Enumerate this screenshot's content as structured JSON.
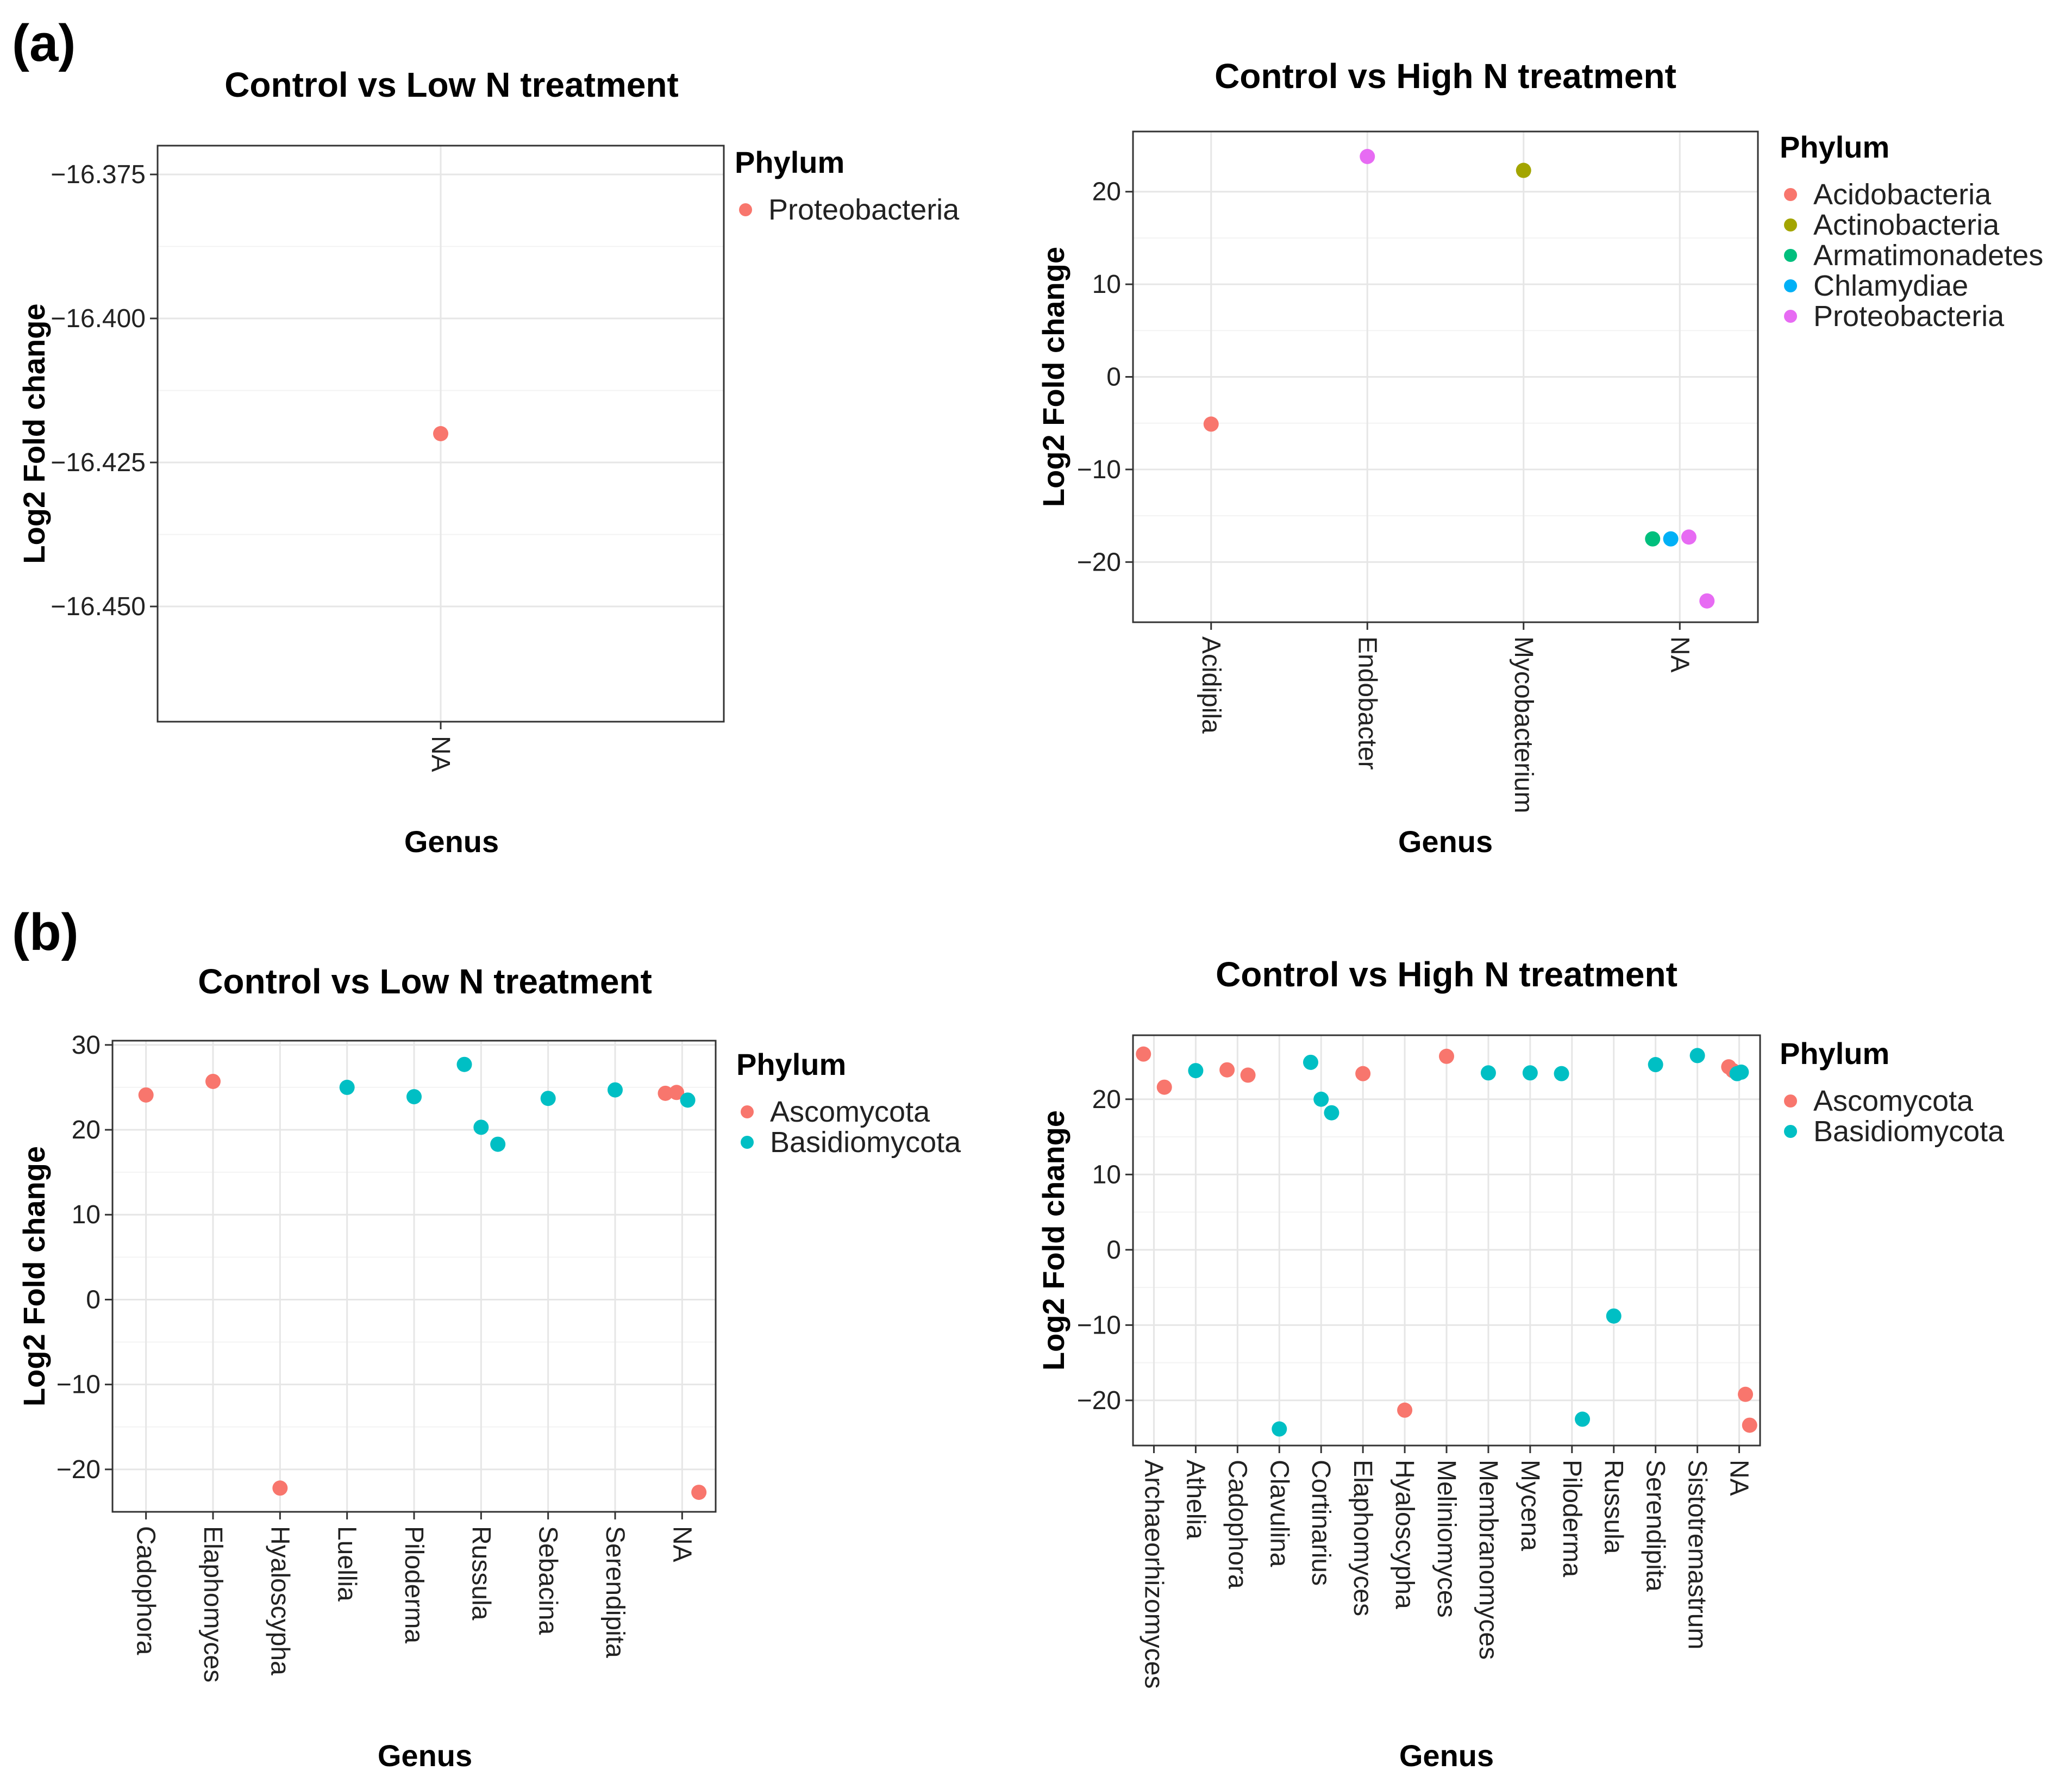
{
  "panel_labels": [
    "(a)",
    "(b)"
  ],
  "chart_data": [
    {
      "type": "scatter",
      "title": "Control vs Low N treatment",
      "xlabel": "Genus",
      "ylabel": "Log2 Fold change",
      "categories": [
        "NA"
      ],
      "ylim": [
        -16.47,
        -16.37
      ],
      "yticks": [
        -16.375,
        -16.4,
        -16.425,
        -16.45
      ],
      "ytick_labels": [
        "−16.375",
        "−16.400",
        "−16.425",
        "−16.450"
      ],
      "grid": true,
      "legend_title": "Phylum",
      "legend": [
        {
          "name": "Proteobacteria",
          "color": "#F8766D"
        }
      ],
      "points": [
        {
          "category": "NA",
          "y": -16.42,
          "phylum": "Proteobacteria",
          "color": "#F8766D"
        }
      ]
    },
    {
      "type": "scatter",
      "title": "Control vs High N treatment",
      "xlabel": "Genus",
      "ylabel": "Log2 Fold change",
      "categories": [
        "Acidipila",
        "Endobacter",
        "Mycobacterium",
        "NA"
      ],
      "ylim": [
        -26.5,
        26.5
      ],
      "yticks": [
        20,
        10,
        0,
        -10,
        -20
      ],
      "ytick_labels": [
        "20",
        "10",
        "0",
        "−10",
        "−20"
      ],
      "grid": true,
      "legend_title": "Phylum",
      "legend": [
        {
          "name": "Acidobacteria",
          "color": "#F8766D"
        },
        {
          "name": "Actinobacteria",
          "color": "#A3A500"
        },
        {
          "name": "Armatimonadetes",
          "color": "#00BF7D"
        },
        {
          "name": "Chlamydiae",
          "color": "#00B0F6"
        },
        {
          "name": "Proteobacteria",
          "color": "#E76BF3"
        }
      ],
      "points": [
        {
          "category": "Acidipila",
          "y": -5.1,
          "phylum": "Acidobacteria",
          "color": "#F8766D"
        },
        {
          "category": "Endobacter",
          "y": 23.8,
          "phylum": "Proteobacteria",
          "color": "#E76BF3"
        },
        {
          "category": "Mycobacterium",
          "y": 22.3,
          "phylum": "Actinobacteria",
          "color": "#A3A500"
        },
        {
          "category": "NA",
          "y": -17.5,
          "phylum": "Armatimonadetes",
          "color": "#00BF7D"
        },
        {
          "category": "NA",
          "y": -17.5,
          "phylum": "Chlamydiae",
          "color": "#00B0F6"
        },
        {
          "category": "NA",
          "y": -17.3,
          "phylum": "Proteobacteria",
          "color": "#E76BF3"
        },
        {
          "category": "NA",
          "y": -24.2,
          "phylum": "Proteobacteria",
          "color": "#E76BF3"
        }
      ]
    },
    {
      "type": "scatter",
      "title": "Control vs Low N treatment",
      "xlabel": "Genus",
      "ylabel": "Log2 Fold change",
      "categories": [
        "Cadophora",
        "Elaphomyces",
        "Hyaloscypha",
        "Luellia",
        "Piloderma",
        "Russula",
        "Sebacina",
        "Serendipita",
        "NA"
      ],
      "ylim": [
        -25,
        30.5
      ],
      "yticks": [
        30,
        20,
        10,
        0,
        -10,
        -20
      ],
      "ytick_labels": [
        "30",
        "20",
        "10",
        "0",
        "−10",
        "−20"
      ],
      "grid": true,
      "legend_title": "Phylum",
      "legend": [
        {
          "name": "Ascomycota",
          "color": "#F8766D"
        },
        {
          "name": "Basidiomycota",
          "color": "#00BFC4"
        }
      ],
      "points": [
        {
          "category": "Cadophora",
          "y": 24.1,
          "phylum": "Ascomycota",
          "color": "#F8766D"
        },
        {
          "category": "Elaphomyces",
          "y": 25.7,
          "phylum": "Ascomycota",
          "color": "#F8766D"
        },
        {
          "category": "Hyaloscypha",
          "y": -22.2,
          "phylum": "Ascomycota",
          "color": "#F8766D"
        },
        {
          "category": "Luellia",
          "y": 25.0,
          "phylum": "Basidiomycota",
          "color": "#00BFC4"
        },
        {
          "category": "Piloderma",
          "y": 23.9,
          "phylum": "Basidiomycota",
          "color": "#00BFC4"
        },
        {
          "category": "Russula",
          "y": 27.7,
          "phylum": "Basidiomycota",
          "color": "#00BFC4"
        },
        {
          "category": "Russula",
          "y": 20.3,
          "phylum": "Basidiomycota",
          "color": "#00BFC4"
        },
        {
          "category": "Russula",
          "y": 18.3,
          "phylum": "Basidiomycota",
          "color": "#00BFC4"
        },
        {
          "category": "Sebacina",
          "y": 23.7,
          "phylum": "Basidiomycota",
          "color": "#00BFC4"
        },
        {
          "category": "Serendipita",
          "y": 24.7,
          "phylum": "Basidiomycota",
          "color": "#00BFC4"
        },
        {
          "category": "NA",
          "y": 24.3,
          "phylum": "Ascomycota",
          "color": "#F8766D"
        },
        {
          "category": "NA",
          "y": 24.4,
          "phylum": "Ascomycota",
          "color": "#F8766D"
        },
        {
          "category": "NA",
          "y": 23.5,
          "phylum": "Basidiomycota",
          "color": "#00BFC4"
        },
        {
          "category": "NA",
          "y": -22.7,
          "phylum": "Ascomycota",
          "color": "#F8766D"
        }
      ]
    },
    {
      "type": "scatter",
      "title": "Control vs High N treatment",
      "xlabel": "Genus",
      "ylabel": "Log2 Fold change",
      "categories": [
        "Archaeorhizomyces",
        "Athelia",
        "Cadophora",
        "Clavulina",
        "Cortinarius",
        "Elaphomyces",
        "Hyaloscypha",
        "Meliniomyces",
        "Membranomyces",
        "Mycena",
        "Piloderma",
        "Russula",
        "Serendipita",
        "Sistotremastrum",
        "NA"
      ],
      "ylim": [
        -26,
        28.5
      ],
      "yticks": [
        20,
        10,
        0,
        -10,
        -20
      ],
      "ytick_labels": [
        "20",
        "10",
        "0",
        "−10",
        "−20"
      ],
      "grid": true,
      "legend_title": "Phylum",
      "legend": [
        {
          "name": "Ascomycota",
          "color": "#F8766D"
        },
        {
          "name": "Basidiomycota",
          "color": "#00BFC4"
        }
      ],
      "points": [
        {
          "category": "Archaeorhizomyces",
          "y": 26.0,
          "phylum": "Ascomycota",
          "color": "#F8766D"
        },
        {
          "category": "Archaeorhizomyces",
          "y": 21.6,
          "phylum": "Ascomycota",
          "color": "#F8766D"
        },
        {
          "category": "Athelia",
          "y": 23.8,
          "phylum": "Basidiomycota",
          "color": "#00BFC4"
        },
        {
          "category": "Cadophora",
          "y": 23.9,
          "phylum": "Ascomycota",
          "color": "#F8766D"
        },
        {
          "category": "Cadophora",
          "y": 23.2,
          "phylum": "Ascomycota",
          "color": "#F8766D"
        },
        {
          "category": "Clavulina",
          "y": -23.8,
          "phylum": "Basidiomycota",
          "color": "#00BFC4"
        },
        {
          "category": "Cortinarius",
          "y": 24.9,
          "phylum": "Basidiomycota",
          "color": "#00BFC4"
        },
        {
          "category": "Cortinarius",
          "y": 20.0,
          "phylum": "Basidiomycota",
          "color": "#00BFC4"
        },
        {
          "category": "Cortinarius",
          "y": 18.2,
          "phylum": "Basidiomycota",
          "color": "#00BFC4"
        },
        {
          "category": "Elaphomyces",
          "y": 23.4,
          "phylum": "Ascomycota",
          "color": "#F8766D"
        },
        {
          "category": "Hyaloscypha",
          "y": -21.3,
          "phylum": "Ascomycota",
          "color": "#F8766D"
        },
        {
          "category": "Meliniomyces",
          "y": 25.7,
          "phylum": "Ascomycota",
          "color": "#F8766D"
        },
        {
          "category": "Membranomyces",
          "y": 23.5,
          "phylum": "Basidiomycota",
          "color": "#00BFC4"
        },
        {
          "category": "Mycena",
          "y": 23.5,
          "phylum": "Basidiomycota",
          "color": "#00BFC4"
        },
        {
          "category": "Piloderma",
          "y": 23.4,
          "phylum": "Basidiomycota",
          "color": "#00BFC4"
        },
        {
          "category": "Piloderma",
          "y": -22.5,
          "phylum": "Basidiomycota",
          "color": "#00BFC4"
        },
        {
          "category": "Russula",
          "y": -8.8,
          "phylum": "Basidiomycota",
          "color": "#00BFC4"
        },
        {
          "category": "Serendipita",
          "y": 24.6,
          "phylum": "Basidiomycota",
          "color": "#00BFC4"
        },
        {
          "category": "Sistotremastrum",
          "y": 25.8,
          "phylum": "Basidiomycota",
          "color": "#00BFC4"
        },
        {
          "category": "NA",
          "y": 24.3,
          "phylum": "Ascomycota",
          "color": "#F8766D"
        },
        {
          "category": "NA",
          "y": 23.8,
          "phylum": "Ascomycota",
          "color": "#F8766D"
        },
        {
          "category": "NA",
          "y": 23.4,
          "phylum": "Basidiomycota",
          "color": "#00BFC4"
        },
        {
          "category": "NA",
          "y": 23.6,
          "phylum": "Basidiomycota",
          "color": "#00BFC4"
        },
        {
          "category": "NA",
          "y": -19.2,
          "phylum": "Ascomycota",
          "color": "#F8766D"
        },
        {
          "category": "NA",
          "y": -23.3,
          "phylum": "Ascomycota",
          "color": "#F8766D"
        }
      ]
    }
  ]
}
